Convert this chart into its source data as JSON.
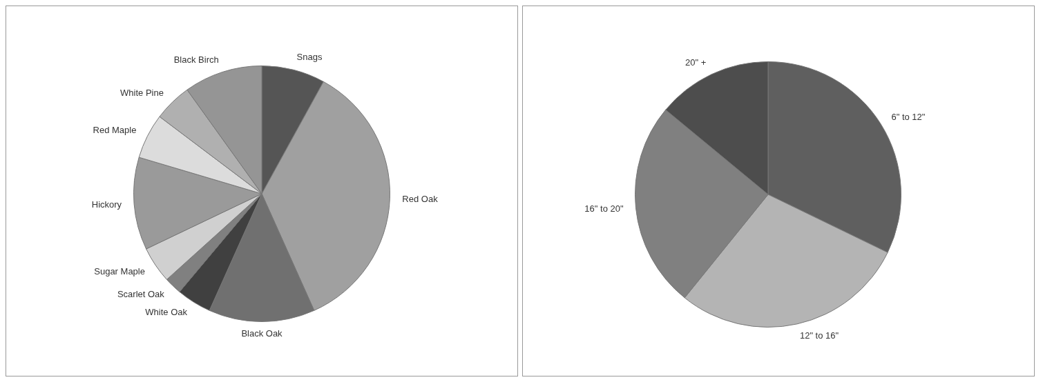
{
  "chart_data": [
    {
      "type": "pie",
      "categories": [
        "Snags",
        "Red Oak",
        "Black Oak",
        "White Oak",
        "Scarlet Oak",
        "Sugar Maple",
        "Hickory",
        "Red Maple",
        "White Pine",
        "Black Birch"
      ],
      "values": [
        8.0,
        35.3,
        13.4,
        4.4,
        2.2,
        4.6,
        11.7,
        5.7,
        4.8,
        9.9
      ],
      "colors": [
        "#555555",
        "#a0a0a0",
        "#707070",
        "#404040",
        "#808080",
        "#d0d0d0",
        "#9a9a9a",
        "#dcdcdc",
        "#b0b0b0",
        "#959595"
      ]
    },
    {
      "type": "pie",
      "categories": [
        "6\" to 12\"",
        "12\" to 16\"",
        "16\" to 20\"",
        "20\" +"
      ],
      "values": [
        32.2,
        28.6,
        25.2,
        14.0
      ],
      "colors": [
        "#5f5f5f",
        "#b4b4b4",
        "#808080",
        "#4d4d4d"
      ]
    }
  ]
}
